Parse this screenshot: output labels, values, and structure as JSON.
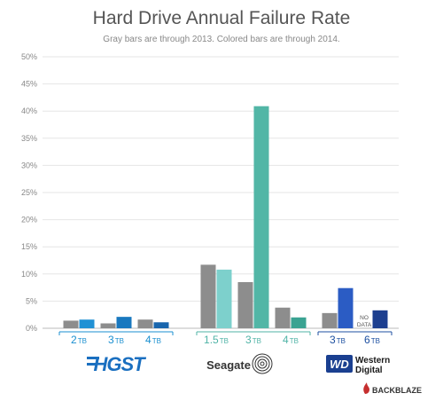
{
  "chart_data": {
    "type": "bar",
    "title": "Hard Drive Annual Failure Rate",
    "subtitle": "Gray bars are through 2013.  Colored bars are through 2014.",
    "ylim": [
      0,
      50
    ],
    "yticks": [
      "0%",
      "5%",
      "10%",
      "15%",
      "20%",
      "25%",
      "30%",
      "35%",
      "40%",
      "45%",
      "50%"
    ],
    "grid": true,
    "series_description": [
      "through 2013 (gray)",
      "through 2014 (colored)"
    ],
    "groups": [
      {
        "brand": "HGST",
        "color": "#1a8fd0",
        "categories": [
          {
            "size": "2",
            "unit": "TB",
            "v2013": 1.4,
            "v2014": 1.6,
            "color2014": "#2191d4"
          },
          {
            "size": "3",
            "unit": "TB",
            "v2013": 0.9,
            "v2014": 2.1,
            "color2014": "#1978bf"
          },
          {
            "size": "4",
            "unit": "TB",
            "v2013": 1.6,
            "v2014": 1.1,
            "color2014": "#1966ad"
          }
        ]
      },
      {
        "brand": "Seagate",
        "color": "#4fb3a6",
        "categories": [
          {
            "size": "1.5",
            "unit": "TB",
            "v2013": 11.7,
            "v2014": 10.8,
            "color2014": "#7dd0cc"
          },
          {
            "size": "3",
            "unit": "TB",
            "v2013": 8.5,
            "v2014": 40.9,
            "color2014": "#52b6a6"
          },
          {
            "size": "4",
            "unit": "TB",
            "v2013": 3.8,
            "v2014": 2.0,
            "color2014": "#3aa392"
          }
        ]
      },
      {
        "brand": "Western Digital",
        "color": "#1c4fa0",
        "categories": [
          {
            "size": "3",
            "unit": "TB",
            "v2013": 2.8,
            "v2014": 7.4,
            "color2014": "#2b5cc4"
          },
          {
            "size": "6",
            "unit": "TB",
            "v2013": null,
            "nodata_label": [
              "NO",
              "DATA"
            ],
            "v2014": 3.3,
            "color2014": "#1d3f8f"
          }
        ]
      }
    ],
    "color2013": "#8d8d8d"
  },
  "logos": {
    "hgst": "HGST",
    "seagate": "Seagate",
    "wd_mark": "WD",
    "wd_text_1": "Western",
    "wd_text_2": "Digital",
    "backblaze": "BACKBLAZE"
  }
}
